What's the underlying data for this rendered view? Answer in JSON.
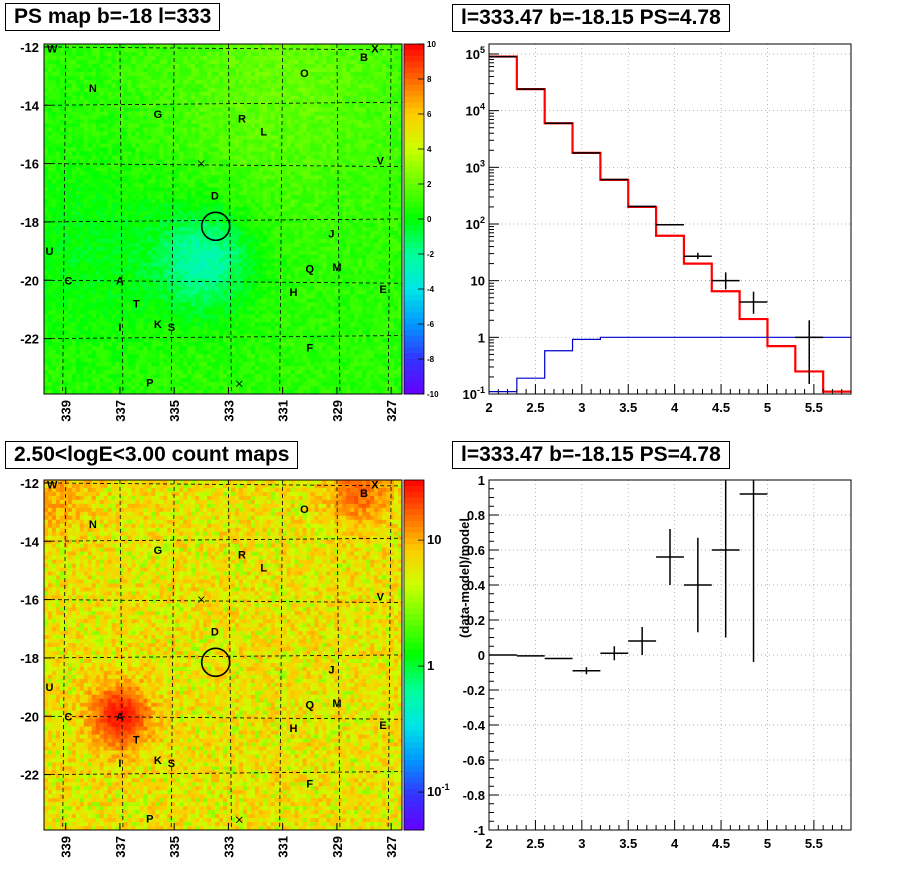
{
  "titles": {
    "ps_map": "PS map b=-18 l=333",
    "spectrum": "l=333.47 b=-18.15 PS=4.78",
    "count_map": "2.50<logE<3.00 count maps",
    "residual": "l=333.47 b=-18.15 PS=4.78"
  },
  "chart_data": [
    {
      "id": "ps_map",
      "type": "heatmap",
      "title": "PS map b=-18 l=333",
      "xlim": [
        339.8,
        326.6
      ],
      "ylim": [
        -23.9,
        -11.9
      ],
      "x_ticks": [
        "339",
        "337",
        "335",
        "333",
        "331",
        "329",
        "327"
      ],
      "x_tick_values": [
        339,
        337,
        335,
        333,
        331,
        329,
        327
      ],
      "y_ticks": [
        "-12",
        "-14",
        "-16",
        "-18",
        "-20",
        "-22"
      ],
      "y_tick_values": [
        -12,
        -14,
        -16,
        -18,
        -20,
        -22
      ],
      "colorbar": {
        "scale": "linear",
        "range": [
          -10,
          10
        ],
        "ticks": [
          "10",
          "8",
          "6",
          "4",
          "2",
          "0",
          "-2",
          "-4",
          "-6",
          "-8",
          "-10"
        ],
        "tick_values": [
          10,
          8,
          6,
          4,
          2,
          0,
          -2,
          -4,
          -6,
          -8,
          -10
        ]
      },
      "circle_center": [
        333.47,
        -18.15
      ],
      "sources": [
        {
          "label": "W",
          "l": 339.5,
          "b": -12.05
        },
        {
          "label": "X",
          "l": 327.6,
          "b": -12.05
        },
        {
          "label": "B",
          "l": 328.0,
          "b": -12.35
        },
        {
          "label": "O",
          "l": 330.2,
          "b": -12.9
        },
        {
          "label": "N",
          "l": 338.0,
          "b": -13.4
        },
        {
          "label": "G",
          "l": 335.6,
          "b": -14.3
        },
        {
          "label": "R",
          "l": 332.5,
          "b": -14.45
        },
        {
          "label": "L",
          "l": 331.7,
          "b": -14.9
        },
        {
          "label": "V",
          "l": 327.4,
          "b": -15.9
        },
        {
          "label": "D",
          "l": 333.5,
          "b": -17.1
        },
        {
          "label": "J",
          "l": 329.2,
          "b": -18.4
        },
        {
          "label": "U",
          "l": 339.6,
          "b": -19.0
        },
        {
          "label": "Q",
          "l": 330.0,
          "b": -19.6
        },
        {
          "label": "M",
          "l": 329.0,
          "b": -19.55
        },
        {
          "label": "A",
          "l": 337.0,
          "b": -20.0
        },
        {
          "label": "C",
          "l": 338.9,
          "b": -20.0
        },
        {
          "label": "H",
          "l": 330.6,
          "b": -20.4
        },
        {
          "label": "E",
          "l": 327.3,
          "b": -20.3
        },
        {
          "label": "T",
          "l": 336.4,
          "b": -20.8
        },
        {
          "label": "K",
          "l": 335.6,
          "b": -21.5
        },
        {
          "label": "S",
          "l": 335.1,
          "b": -21.6
        },
        {
          "label": "I",
          "l": 337.0,
          "b": -21.6
        },
        {
          "label": "F",
          "l": 330.0,
          "b": -22.3
        },
        {
          "label": "P",
          "l": 335.9,
          "b": -23.5
        }
      ],
      "x_marks": [
        {
          "l": 334.0,
          "b": -16.0
        },
        {
          "l": 332.6,
          "b": -23.55
        },
        {
          "l": 327.6,
          "b": -12.05
        }
      ]
    },
    {
      "id": "spectrum",
      "type": "line",
      "title": "l=333.47 b=-18.15 PS=4.78",
      "xlim": [
        2,
        5.9
      ],
      "ylim": [
        0.1,
        150000
      ],
      "y_scale": "log",
      "grid": true,
      "x_ticks": [
        "2",
        "2.5",
        "3",
        "3.5",
        "4",
        "4.5",
        "5",
        "5.5"
      ],
      "x_tick_values": [
        2,
        2.5,
        3,
        3.5,
        4,
        4.5,
        5,
        5.5
      ],
      "y_ticks": [
        "10^-1",
        "1",
        "10",
        "10^2",
        "10^3",
        "10^4",
        "10^5"
      ],
      "y_tick_values": [
        0.1,
        1,
        10,
        100,
        1000,
        10000,
        100000
      ],
      "bin_edges": [
        2.0,
        2.3,
        2.6,
        2.9,
        3.2,
        3.5,
        3.8,
        4.1,
        4.4,
        4.7,
        5.0,
        5.3,
        5.6,
        5.9
      ],
      "series": [
        {
          "color": "#ff0000",
          "style": "step",
          "values": [
            90000,
            24000,
            6000,
            1800,
            600,
            200,
            62,
            20,
            6.5,
            2.1,
            0.7,
            0.25,
            0.11
          ]
        },
        {
          "color": "#0000cc",
          "style": "step",
          "values": [
            0.11,
            0.19,
            0.58,
            0.92,
            1.0,
            1.0,
            1.0,
            1.0,
            1.0,
            1.0,
            1.0,
            1.0,
            1.0
          ]
        },
        {
          "color": "#000000",
          "style": "points_with_errors",
          "x": [
            2.15,
            2.45,
            2.75,
            3.05,
            3.35,
            3.65,
            3.95,
            4.25,
            4.55,
            4.85,
            5.15,
            5.45
          ],
          "y": [
            90000,
            24000,
            6000,
            1800,
            610,
            205,
            97,
            27,
            10,
            4.2,
            null,
            1.0
          ],
          "err_low": [
            0,
            0,
            0,
            0,
            0,
            0,
            0,
            3,
            3,
            1.6,
            null,
            0.85
          ],
          "err_high": [
            0,
            0,
            0,
            0,
            0,
            0,
            0,
            4,
            4,
            2.2,
            null,
            1.0
          ]
        }
      ]
    },
    {
      "id": "count_map",
      "type": "heatmap",
      "title": "2.50<logE<3.00 count maps",
      "xlim": [
        339.8,
        326.6
      ],
      "ylim": [
        -23.9,
        -11.9
      ],
      "x_ticks": [
        "339",
        "337",
        "335",
        "333",
        "331",
        "329",
        "327"
      ],
      "x_tick_values": [
        339,
        337,
        335,
        333,
        331,
        329,
        327
      ],
      "y_ticks": [
        "-12",
        "-14",
        "-16",
        "-18",
        "-20",
        "-22"
      ],
      "y_tick_values": [
        -12,
        -14,
        -16,
        -18,
        -20,
        -22
      ],
      "colorbar": {
        "scale": "log",
        "range": [
          0.05,
          30
        ],
        "ticks": [
          "10",
          "1",
          "10^-1"
        ],
        "tick_values": [
          10,
          1,
          0.1
        ]
      },
      "circle_center": [
        333.47,
        -18.15
      ]
    },
    {
      "id": "residual",
      "type": "scatter",
      "title": "l=333.47 b=-18.15 PS=4.78",
      "xlim": [
        2,
        5.9
      ],
      "ylim": [
        -1,
        1
      ],
      "grid": true,
      "ylabel": "(data-model)/model",
      "x_ticks": [
        "2",
        "2.5",
        "3",
        "3.5",
        "4",
        "4.5",
        "5",
        "5.5"
      ],
      "x_tick_values": [
        2,
        2.5,
        3,
        3.5,
        4,
        4.5,
        5,
        5.5
      ],
      "y_ticks": [
        "-1",
        "-0.8",
        "-0.6",
        "-0.4",
        "-0.2",
        "0",
        "0.2",
        "0.4",
        "0.6",
        "0.8",
        "1"
      ],
      "y_tick_values": [
        -1,
        -0.8,
        -0.6,
        -0.4,
        -0.2,
        0,
        0.2,
        0.4,
        0.6,
        0.8,
        1
      ],
      "points": [
        {
          "x": 2.15,
          "y": 0.0,
          "elo": 0.0,
          "ehi": 0.0
        },
        {
          "x": 2.45,
          "y": -0.005,
          "elo": 0.0,
          "ehi": 0.0
        },
        {
          "x": 2.75,
          "y": -0.02,
          "elo": 0.0,
          "ehi": 0.0
        },
        {
          "x": 3.05,
          "y": -0.09,
          "elo": 0.02,
          "ehi": 0.02
        },
        {
          "x": 3.35,
          "y": 0.01,
          "elo": 0.04,
          "ehi": 0.04
        },
        {
          "x": 3.65,
          "y": 0.08,
          "elo": 0.08,
          "ehi": 0.08
        },
        {
          "x": 3.95,
          "y": 0.56,
          "elo": 0.16,
          "ehi": 0.16
        },
        {
          "x": 4.25,
          "y": 0.4,
          "elo": 0.27,
          "ehi": 0.27
        },
        {
          "x": 4.55,
          "y": 0.6,
          "elo": 0.5,
          "ehi": 0.45
        },
        {
          "x": 4.85,
          "y": 0.92,
          "elo": 0.96,
          "ehi": 0.1
        }
      ]
    }
  ]
}
